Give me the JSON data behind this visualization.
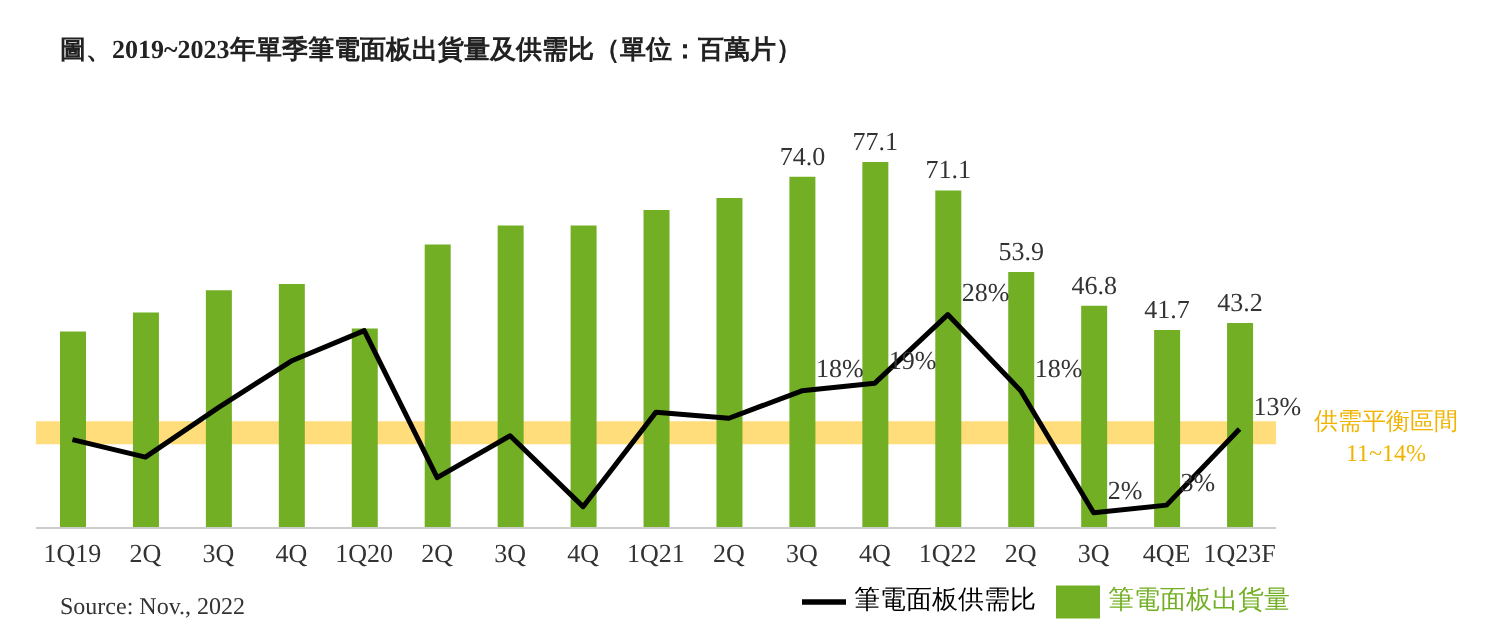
{
  "chart_data": {
    "type": "bar",
    "title": "圖、2019~2023年單季筆電面板出貨量及供需比（單位：百萬片）",
    "categories": [
      "1Q19",
      "2Q",
      "3Q",
      "4Q",
      "1Q20",
      "2Q",
      "3Q",
      "4Q",
      "1Q21",
      "2Q",
      "3Q",
      "4Q",
      "1Q22",
      "2Q",
      "3Q",
      "4QE",
      "1Q23F"
    ],
    "series": [
      {
        "name": "筆電面板出貨量",
        "color": "#73af24",
        "values": [
          41.4,
          45.4,
          50.1,
          51.4,
          42,
          59.7,
          63.7,
          63.7,
          67.0,
          69.5,
          74.0,
          77.1,
          71.1,
          53.9,
          46.8,
          41.7,
          43.2
        ],
        "value_labels": [
          null,
          null,
          null,
          null,
          null,
          null,
          null,
          null,
          null,
          null,
          "74.0",
          "77.1",
          "71.1",
          "53.9",
          "46.8",
          "41.7",
          "43.2"
        ]
      },
      {
        "name": "筆電面板供需比",
        "type": "line",
        "axis": "y2",
        "color": "#000000",
        "values": [
          11.6,
          9.3,
          15.8,
          21.9,
          25.9,
          6.6,
          12.1,
          2.8,
          15.2,
          14.4,
          18,
          19,
          28,
          18,
          2,
          3,
          13
        ],
        "value_labels": [
          null,
          null,
          null,
          null,
          null,
          null,
          null,
          null,
          null,
          null,
          "18%",
          "19%",
          "28%",
          "18%",
          "2%",
          "3%",
          "13%"
        ]
      }
    ],
    "bands": [
      {
        "axis": "y2",
        "from": 11,
        "to": 14,
        "label": "供需平衡區間 11~14%",
        "color": "#ffd24d"
      }
    ],
    "legend": "bottom",
    "marker": "none",
    "annotations": [
      "Source: Nov., 2022"
    ]
  }
}
